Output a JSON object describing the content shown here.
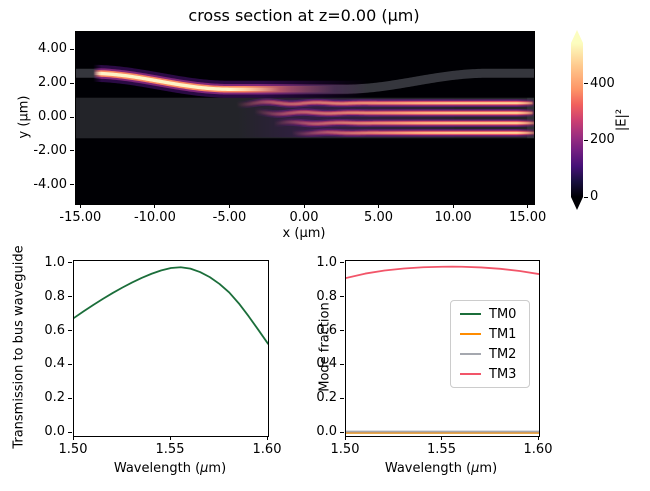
{
  "figure": {
    "background": "#ffffff"
  },
  "chart_data": [
    {
      "id": "field_map",
      "type": "heatmap",
      "title": "cross section at z=0.00 (μm)",
      "xlabel": "x (μm)",
      "ylabel": "y (μm)",
      "xlim": [
        -15.36,
        15.36
      ],
      "ylim": [
        -5.09,
        5.09
      ],
      "xticks": {
        "values": [
          -15,
          -10,
          -5,
          0,
          5,
          10,
          15
        ],
        "labels": [
          "-15.00",
          "-10.00",
          "-5.00",
          "0.00",
          "5.00",
          "10.00",
          "15.00"
        ]
      },
      "yticks": {
        "values": [
          4,
          2,
          0,
          -2,
          -4
        ],
        "labels": [
          "4.00",
          "2.00",
          "0.00",
          "-2.00",
          "-4.00"
        ]
      },
      "colorbar": {
        "label": "|E|²",
        "vmin": 0,
        "vmax": 545,
        "extend": "both",
        "ticks": {
          "values": [
            0,
            200,
            400
          ],
          "labels": [
            "0",
            "200",
            "400"
          ]
        },
        "cmap": "magma",
        "stops": [
          [
            0.0,
            "#000004"
          ],
          [
            0.1,
            "#180f3e"
          ],
          [
            0.2,
            "#451077"
          ],
          [
            0.3,
            "#721f81"
          ],
          [
            0.4,
            "#9e2f7f"
          ],
          [
            0.5,
            "#cd4071"
          ],
          [
            0.6,
            "#f1605d"
          ],
          [
            0.7,
            "#fd9567"
          ],
          [
            0.85,
            "#fec98d"
          ],
          [
            1.0,
            "#fcfdbf"
          ]
        ]
      },
      "structure": {
        "slab_y": [
          -1.2,
          1.2
        ],
        "waveguide": {
          "y_in": 2.65,
          "y_low": 1.7,
          "bend_in": [
            -14.5,
            -5.0
          ],
          "bend_out": [
            2.5,
            12.3
          ],
          "width_um": 0.55
        },
        "note": "bent bus waveguide evanescently coupling into a multimode slab"
      },
      "field": {
        "input_glow_range": [
          -14.2,
          4.2
        ],
        "stripes": {
          "y_centers": [
            0.88,
            0.3,
            -0.3,
            -0.88
          ],
          "x_starts": [
            -4.6,
            -3.4,
            -2.1,
            -0.9
          ],
          "x_end": 15.3
        }
      }
    },
    {
      "id": "transmission",
      "type": "line",
      "xlabel_parts": [
        "Wavelength (",
        "μ",
        "m)"
      ],
      "ylabel": "Transmission to bus waveguide",
      "xlim": [
        1.5,
        1.6
      ],
      "ylim": [
        -0.015,
        1.015
      ],
      "xticks": {
        "values": [
          1.5,
          1.55,
          1.6
        ],
        "labels": [
          "1.50",
          "1.55",
          "1.60"
        ]
      },
      "yticks": {
        "values": [
          0.0,
          0.2,
          0.4,
          0.6,
          0.8,
          1.0
        ],
        "labels": [
          "0.0",
          "0.2",
          "0.4",
          "0.6",
          "0.8",
          "1.0"
        ]
      },
      "series": [
        {
          "name": "transmission",
          "color": "#1b6e3a",
          "x": [
            1.5,
            1.505,
            1.51,
            1.515,
            1.52,
            1.525,
            1.53,
            1.535,
            1.54,
            1.545,
            1.55,
            1.555,
            1.56,
            1.565,
            1.57,
            1.575,
            1.58,
            1.585,
            1.59,
            1.595,
            1.6
          ],
          "y": [
            0.68,
            0.719,
            0.757,
            0.793,
            0.827,
            0.859,
            0.889,
            0.916,
            0.94,
            0.96,
            0.974,
            0.978,
            0.97,
            0.95,
            0.92,
            0.88,
            0.83,
            0.765,
            0.69,
            0.61,
            0.528
          ]
        }
      ]
    },
    {
      "id": "mode_fraction",
      "type": "line",
      "xlabel_parts": [
        "Wavelength (",
        "μ",
        "m)"
      ],
      "ylabel": "Mode fraction",
      "xlim": [
        1.5,
        1.6
      ],
      "ylim": [
        -0.015,
        1.015
      ],
      "xticks": {
        "values": [
          1.5,
          1.55,
          1.6
        ],
        "labels": [
          "1.50",
          "1.55",
          "1.60"
        ]
      },
      "yticks": {
        "values": [
          0.0,
          0.2,
          0.4,
          0.6,
          0.8,
          1.0
        ],
        "labels": [
          "0.0",
          "0.2",
          "0.4",
          "0.6",
          "0.8",
          "1.0"
        ]
      },
      "legend": {
        "labels": [
          "TM0",
          "TM1",
          "TM2",
          "TM3"
        ]
      },
      "series": [
        {
          "name": "TM0",
          "color": "#1b6e3a",
          "x": [
            1.5,
            1.6
          ],
          "y": [
            0.004,
            0.004
          ]
        },
        {
          "name": "TM1",
          "color": "#ff8c00",
          "x": [
            1.5,
            1.6
          ],
          "y": [
            0.004,
            0.004
          ]
        },
        {
          "name": "TM2",
          "color": "#a5a8af",
          "x": [
            1.5,
            1.6
          ],
          "y": [
            0.011,
            0.011
          ]
        },
        {
          "name": "TM3",
          "color": "#f25569",
          "x": [
            1.5,
            1.51,
            1.52,
            1.53,
            1.54,
            1.55,
            1.555,
            1.56,
            1.57,
            1.58,
            1.59,
            1.6
          ],
          "y": [
            0.915,
            0.941,
            0.959,
            0.971,
            0.978,
            0.981,
            0.982,
            0.981,
            0.977,
            0.969,
            0.956,
            0.938
          ]
        }
      ]
    }
  ]
}
